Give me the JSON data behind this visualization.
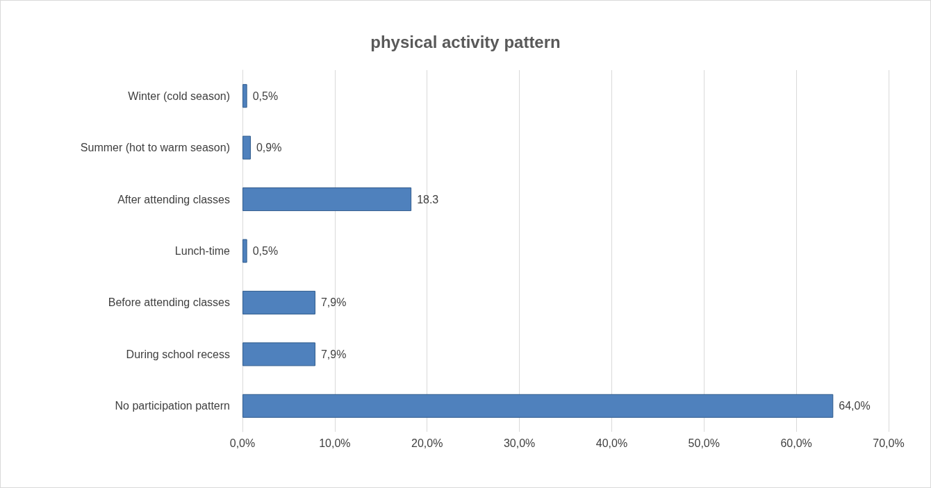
{
  "chart_data": {
    "type": "bar",
    "orientation": "horizontal",
    "title": "physical activity pattern",
    "categories": [
      "Winter (cold season)",
      "Summer (hot to warm season)",
      "After attending classes",
      "Lunch-time",
      "Before attending classes",
      "During school recess",
      "No participation pattern"
    ],
    "values": [
      0.5,
      0.9,
      18.3,
      0.5,
      7.9,
      7.9,
      64.0
    ],
    "value_labels": [
      "0,5%",
      "0,9%",
      "18.3",
      "0,5%",
      "7,9%",
      "7,9%",
      "64,0%"
    ],
    "color": "#4f81bd",
    "xlim": [
      0,
      70
    ],
    "xticks": [
      {
        "value": 0,
        "label": "0,0%"
      },
      {
        "value": 10,
        "label": "10,0%"
      },
      {
        "value": 20,
        "label": "20,0%"
      },
      {
        "value": 30,
        "label": "30,0%"
      },
      {
        "value": 40,
        "label": "40,0%"
      },
      {
        "value": 50,
        "label": "50,0%"
      },
      {
        "value": 60,
        "label": "60,0%"
      },
      {
        "value": 70,
        "label": "70,0%"
      }
    ],
    "grid": "x"
  }
}
